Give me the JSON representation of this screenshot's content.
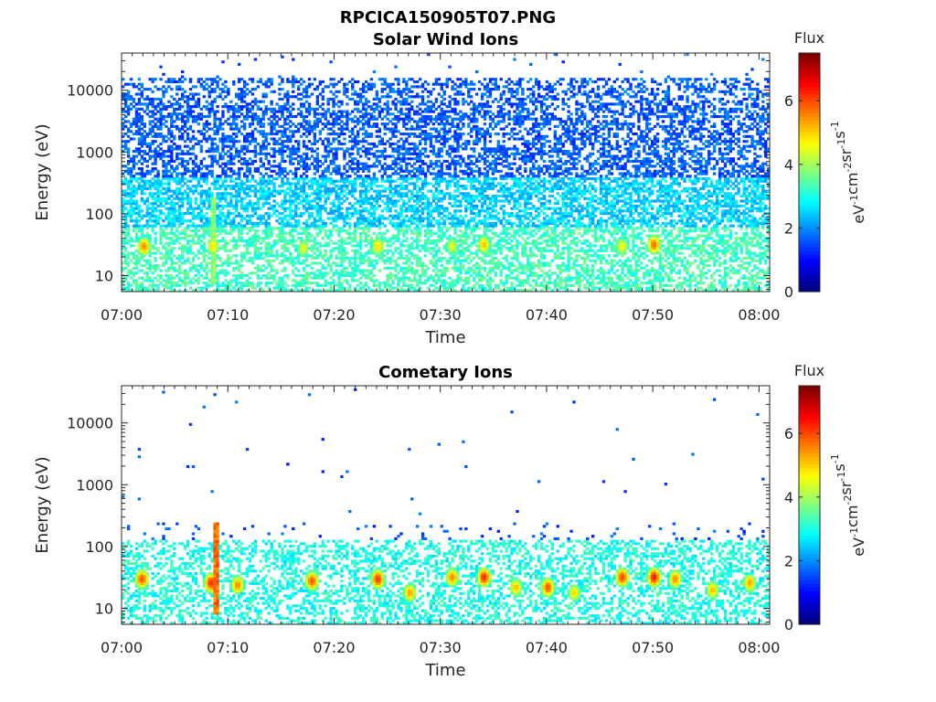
{
  "figure_title": "RPCICA150905T07.PNG",
  "chart_data": [
    {
      "type": "heatmap",
      "title": "Solar Wind Ions",
      "xlabel": "Time",
      "ylabel": "Energy (eV)",
      "x_range": [
        "07:00",
        "08:01"
      ],
      "x_ticks": [
        "07:00",
        "07:10",
        "07:20",
        "07:30",
        "07:40",
        "07:50",
        "08:00"
      ],
      "y_scale": "log",
      "y_range": [
        5.5,
        40000
      ],
      "y_ticks": [
        10,
        100,
        1000,
        10000
      ],
      "y_tick_labels": [
        "10",
        "100",
        "1000",
        "10000"
      ],
      "colorbar": {
        "label": "Flux",
        "unit_label": "eV-1cm-2sr-1s-1",
        "range": [
          0,
          7.5
        ],
        "ticks": [
          0,
          2,
          4,
          6
        ],
        "tick_labels": [
          "0",
          "2",
          "4",
          "6"
        ],
        "colormap": "jet"
      },
      "background_flux": {
        "high_energy_level": 1.6,
        "low_energy_level": 3.3
      },
      "bursts": [
        {
          "time_min": 2.0,
          "energy_center_ev": 30,
          "peak_flux": 5.6
        },
        {
          "time_min": 8.5,
          "energy_center_ev": 30,
          "peak_flux": 5.0
        },
        {
          "time_min": 17.0,
          "energy_center_ev": 28,
          "peak_flux": 4.6
        },
        {
          "time_min": 24.0,
          "energy_center_ev": 30,
          "peak_flux": 5.0
        },
        {
          "time_min": 31.0,
          "energy_center_ev": 30,
          "peak_flux": 4.6
        },
        {
          "time_min": 34.0,
          "energy_center_ev": 32,
          "peak_flux": 5.2
        },
        {
          "time_min": 47.0,
          "energy_center_ev": 30,
          "peak_flux": 4.8
        },
        {
          "time_min": 50.0,
          "energy_center_ev": 32,
          "peak_flux": 5.8
        }
      ],
      "spikes": [
        {
          "time_min": 8.6,
          "energy_top_ev": 180,
          "flux": 4.2
        }
      ]
    },
    {
      "type": "heatmap",
      "title": "Cometary Ions",
      "xlabel": "Time",
      "ylabel": "Energy (eV)",
      "x_range": [
        "07:00",
        "08:01"
      ],
      "x_ticks": [
        "07:00",
        "07:10",
        "07:20",
        "07:30",
        "07:40",
        "07:50",
        "08:00"
      ],
      "y_scale": "log",
      "y_range": [
        5.5,
        40000
      ],
      "y_ticks": [
        10,
        100,
        1000,
        10000
      ],
      "y_tick_labels": [
        "10",
        "100",
        "1000",
        "10000"
      ],
      "colorbar": {
        "label": "Flux",
        "unit_label": "eV-1cm-2sr-1s-1",
        "range": [
          0,
          7.5
        ],
        "ticks": [
          0,
          2,
          4,
          6
        ],
        "tick_labels": [
          "0",
          "2",
          "4",
          "6"
        ],
        "colormap": "jet"
      },
      "background_flux": {
        "high_energy_level": 1.5,
        "low_energy_level": 3.0
      },
      "bursts": [
        {
          "time_min": 1.8,
          "energy_center_ev": 30,
          "peak_flux": 6.0
        },
        {
          "time_min": 8.3,
          "energy_center_ev": 26,
          "peak_flux": 6.3
        },
        {
          "time_min": 10.8,
          "energy_center_ev": 24,
          "peak_flux": 5.6
        },
        {
          "time_min": 17.8,
          "energy_center_ev": 28,
          "peak_flux": 6.0
        },
        {
          "time_min": 24.0,
          "energy_center_ev": 30,
          "peak_flux": 6.2
        },
        {
          "time_min": 27.0,
          "energy_center_ev": 18,
          "peak_flux": 5.4
        },
        {
          "time_min": 31.0,
          "energy_center_ev": 32,
          "peak_flux": 5.6
        },
        {
          "time_min": 34.0,
          "energy_center_ev": 32,
          "peak_flux": 6.3
        },
        {
          "time_min": 37.0,
          "energy_center_ev": 22,
          "peak_flux": 5.2
        },
        {
          "time_min": 40.0,
          "energy_center_ev": 22,
          "peak_flux": 6.0
        },
        {
          "time_min": 42.5,
          "energy_center_ev": 18,
          "peak_flux": 5.0
        },
        {
          "time_min": 47.0,
          "energy_center_ev": 32,
          "peak_flux": 6.1
        },
        {
          "time_min": 50.0,
          "energy_center_ev": 32,
          "peak_flux": 6.4
        },
        {
          "time_min": 52.0,
          "energy_center_ev": 30,
          "peak_flux": 5.6
        },
        {
          "time_min": 55.5,
          "energy_center_ev": 20,
          "peak_flux": 5.2
        },
        {
          "time_min": 59.0,
          "energy_center_ev": 26,
          "peak_flux": 5.4
        }
      ],
      "spikes": [
        {
          "time_min": 8.7,
          "energy_top_ev": 250,
          "flux": 6.2
        }
      ]
    }
  ]
}
